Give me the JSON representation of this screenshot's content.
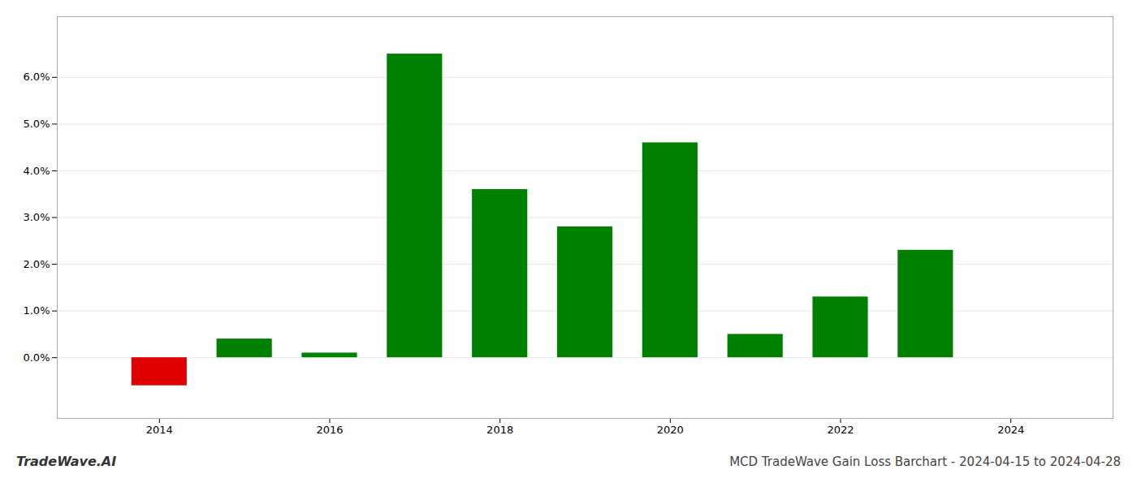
{
  "chart_data": {
    "type": "bar",
    "title": "MCD TradeWave Gain Loss Barchart - 2024-04-15 to 2024-04-28",
    "annotations": [
      "TradeWave.AI"
    ],
    "x": [
      2014,
      2015,
      2016,
      2017,
      2018,
      2019,
      2020,
      2021,
      2022,
      2023
    ],
    "values": [
      -0.006,
      0.004,
      0.001,
      0.065,
      0.036,
      0.028,
      0.046,
      0.005,
      0.013,
      0.023
    ],
    "colors": [
      "#e00000",
      "#008000",
      "#008000",
      "#008000",
      "#008000",
      "#008000",
      "#008000",
      "#008000",
      "#008000",
      "#008000"
    ],
    "xlim": [
      2012.8,
      2025.2
    ],
    "xticks": [
      2014,
      2016,
      2018,
      2020,
      2022,
      2024
    ],
    "ylim": [
      -0.013,
      0.073
    ],
    "yticks": [
      {
        "value": 0.0,
        "label": "0.0%"
      },
      {
        "value": 0.01,
        "label": "1.0%"
      },
      {
        "value": 0.02,
        "label": "2.0%"
      },
      {
        "value": 0.03,
        "label": "3.0%"
      },
      {
        "value": 0.04,
        "label": "4.0%"
      },
      {
        "value": 0.05,
        "label": "5.0%"
      },
      {
        "value": 0.06,
        "label": "6.0%"
      }
    ],
    "grid": true
  }
}
